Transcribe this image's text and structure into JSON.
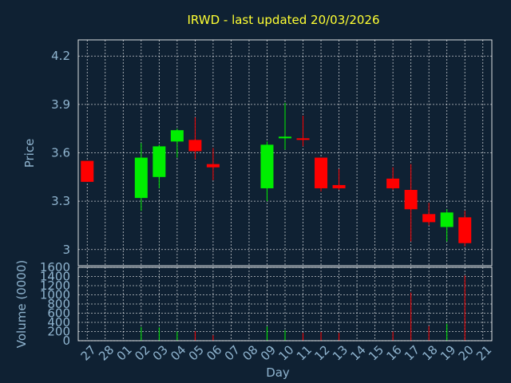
{
  "chart_data": {
    "type": "candlestick",
    "title": "IRWD - last updated 20/03/2026",
    "xlabel": "Day",
    "price_ylabel": "Price",
    "volume_ylabel": "Volume (0000)",
    "x_tick_labels": [
      "27",
      "28",
      "01",
      "02",
      "03",
      "04",
      "05",
      "06",
      "07",
      "08",
      "09",
      "10",
      "11",
      "12",
      "13",
      "14",
      "15",
      "16",
      "17",
      "18",
      "19",
      "20",
      "21"
    ],
    "price_ticks": [
      "3",
      "3.3",
      "3.6",
      "3.9",
      "4.2"
    ],
    "volume_ticks": [
      "0",
      "200",
      "400",
      "600",
      "800",
      "1000",
      "1200",
      "1400",
      "1600"
    ],
    "price_ylim": [
      2.9,
      4.3
    ],
    "volume_ylim": [
      0,
      1600
    ],
    "grid": true,
    "up_color": "#00ee00",
    "down_color": "#ff0000",
    "candles": [
      {
        "day": "27",
        "open": 3.55,
        "high": 3.55,
        "low": 3.42,
        "close": 3.42,
        "volume": 0
      },
      {
        "day": "02",
        "open": 3.32,
        "high": 3.66,
        "low": 3.24,
        "close": 3.57,
        "volume": 300
      },
      {
        "day": "03",
        "open": 3.45,
        "high": 3.65,
        "low": 3.38,
        "close": 3.64,
        "volume": 290
      },
      {
        "day": "04",
        "open": 3.67,
        "high": 3.75,
        "low": 3.57,
        "close": 3.74,
        "volume": 200
      },
      {
        "day": "05",
        "open": 3.68,
        "high": 3.82,
        "low": 3.56,
        "close": 3.61,
        "volume": 210
      },
      {
        "day": "06",
        "open": 3.53,
        "high": 3.63,
        "low": 3.43,
        "close": 3.51,
        "volume": 120
      },
      {
        "day": "09",
        "open": 3.38,
        "high": 3.67,
        "low": 3.3,
        "close": 3.65,
        "volume": 310
      },
      {
        "day": "10",
        "open": 3.69,
        "high": 3.91,
        "low": 3.62,
        "close": 3.7,
        "volume": 230
      },
      {
        "day": "11",
        "open": 3.69,
        "high": 3.83,
        "low": 3.64,
        "close": 3.68,
        "volume": 170
      },
      {
        "day": "12",
        "open": 3.57,
        "high": 3.57,
        "low": 3.36,
        "close": 3.38,
        "volume": 190
      },
      {
        "day": "13",
        "open": 3.4,
        "high": 3.5,
        "low": 3.37,
        "close": 3.38,
        "volume": 170
      },
      {
        "day": "16",
        "open": 3.44,
        "high": 3.51,
        "low": 3.37,
        "close": 3.38,
        "volume": 200
      },
      {
        "day": "17",
        "open": 3.37,
        "high": 3.53,
        "low": 3.05,
        "close": 3.25,
        "volume": 1050
      },
      {
        "day": "18",
        "open": 3.22,
        "high": 3.29,
        "low": 3.15,
        "close": 3.17,
        "volume": 320
      },
      {
        "day": "19",
        "open": 3.14,
        "high": 3.25,
        "low": 3.05,
        "close": 3.23,
        "volume": 370
      },
      {
        "day": "20",
        "open": 3.2,
        "high": 3.24,
        "low": 3.02,
        "close": 3.04,
        "volume": 1420
      }
    ]
  }
}
